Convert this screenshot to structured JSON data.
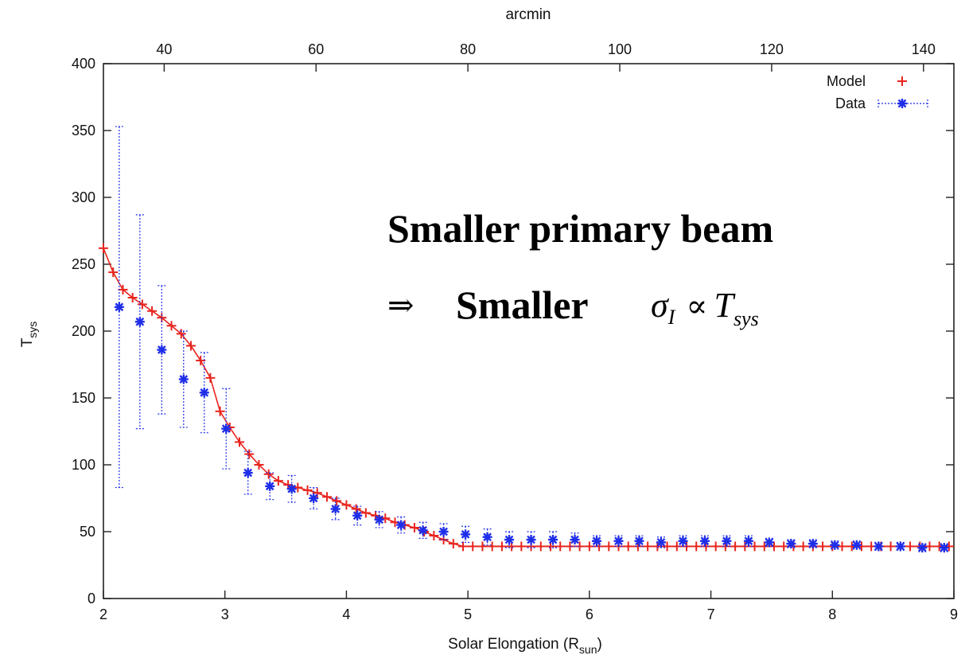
{
  "chart_data": {
    "type": "scatter",
    "xlabel": "Solar Elongation (R",
    "xlabel_sub": "sun",
    "xlabel_close": ")",
    "ylabel": "T",
    "ylabel_sub": "sys",
    "top_axis_label": "arcmin",
    "xlim": [
      2,
      9
    ],
    "ylim": [
      0,
      400
    ],
    "x_ticks": [
      2,
      3,
      4,
      5,
      6,
      7,
      8,
      9
    ],
    "y_ticks": [
      0,
      50,
      100,
      150,
      200,
      250,
      300,
      350,
      400
    ],
    "top_xlim": [
      32,
      144
    ],
    "top_ticks": [
      40,
      60,
      80,
      100,
      120,
      140
    ],
    "grid": false,
    "legend_position": "top-right",
    "series": [
      {
        "name": "Model",
        "color": "#e8241d",
        "marker": "plus",
        "x": [
          2.0,
          2.08,
          2.16,
          2.24,
          2.32,
          2.4,
          2.48,
          2.56,
          2.64,
          2.72,
          2.8,
          2.88,
          2.96,
          3.04,
          3.12,
          3.2,
          3.28,
          3.36,
          3.44,
          3.52,
          3.6,
          3.68,
          3.76,
          3.84,
          3.92,
          4.0,
          4.08,
          4.16,
          4.24,
          4.32,
          4.4,
          4.48,
          4.56,
          4.64,
          4.72,
          4.8,
          4.88,
          4.96,
          5.04,
          5.12,
          5.2,
          5.28,
          5.36,
          5.44,
          5.52,
          5.6,
          5.68,
          5.76,
          5.84,
          5.92,
          6.0,
          6.08,
          6.16,
          6.24,
          6.32,
          6.4,
          6.48,
          6.56,
          6.64,
          6.72,
          6.8,
          6.88,
          6.96,
          7.04,
          7.12,
          7.2,
          7.28,
          7.36,
          7.44,
          7.52,
          7.6,
          7.68,
          7.76,
          7.84,
          7.92,
          8.0,
          8.08,
          8.16,
          8.24,
          8.32,
          8.4,
          8.48,
          8.56,
          8.64,
          8.72,
          8.8,
          8.88,
          8.96
        ],
        "y": [
          262,
          244,
          231,
          225,
          220,
          215,
          210,
          204,
          198,
          189,
          178,
          165,
          140,
          128,
          117,
          108,
          100,
          93,
          88,
          85,
          83,
          81,
          79,
          76,
          73,
          70,
          67,
          64,
          62,
          60,
          57,
          55,
          53,
          50,
          47,
          44,
          41,
          39,
          39,
          39,
          39,
          39,
          39,
          39,
          39,
          39,
          39,
          39,
          39,
          39,
          39,
          39,
          39,
          39,
          39,
          39,
          39,
          39,
          39,
          39,
          39,
          39,
          39,
          39,
          39,
          39,
          39,
          39,
          39,
          39,
          39,
          39,
          39,
          39,
          39,
          39,
          39,
          39,
          39,
          39,
          39,
          39,
          39,
          39,
          39,
          39,
          39,
          39
        ]
      },
      {
        "name": "Data",
        "color": "#1f2ee8",
        "marker": "asterisk",
        "x": [
          2.13,
          2.3,
          2.48,
          2.66,
          2.83,
          3.01,
          3.19,
          3.37,
          3.55,
          3.73,
          3.91,
          4.09,
          4.27,
          4.45,
          4.63,
          4.8,
          4.98,
          5.16,
          5.34,
          5.52,
          5.7,
          5.88,
          6.06,
          6.24,
          6.41,
          6.59,
          6.77,
          6.95,
          7.13,
          7.31,
          7.48,
          7.66,
          7.84,
          8.02,
          8.2,
          8.38,
          8.56,
          8.74,
          8.92
        ],
        "y": [
          218,
          207,
          186,
          164,
          154,
          127,
          94,
          84,
          82,
          75,
          67,
          62,
          59,
          55,
          51,
          50,
          48,
          46,
          44,
          44,
          44,
          44,
          43,
          43,
          43,
          42,
          43,
          43,
          43,
          43,
          42,
          41,
          41,
          40,
          40,
          39,
          39,
          38,
          38
        ],
        "err": [
          135,
          80,
          48,
          36,
          30,
          30,
          16,
          10,
          10,
          8,
          8,
          7,
          6,
          6,
          6,
          6,
          6,
          6,
          6,
          6,
          6,
          5,
          4,
          4,
          4,
          4,
          4,
          4,
          4,
          4,
          3,
          3,
          3,
          3,
          3,
          3,
          3,
          3,
          3
        ]
      }
    ]
  },
  "annotation": {
    "line1": "Smaller primary beam",
    "arrow": "⇒",
    "line2": "Smaller",
    "sigma": "σ",
    "sigma_sub": "I",
    "proportional": "∝",
    "t": "T",
    "t_sub": "sys"
  }
}
